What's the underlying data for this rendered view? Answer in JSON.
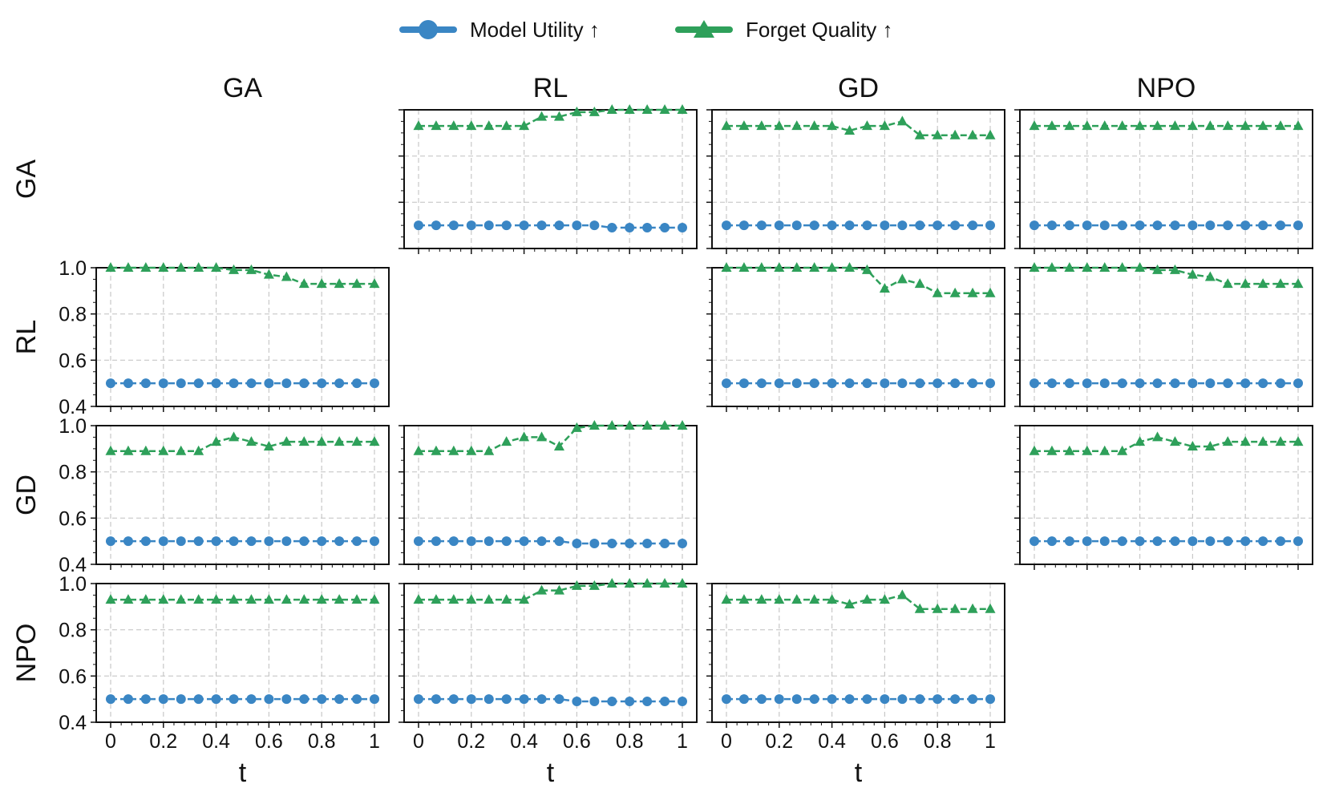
{
  "legend": {
    "model_utility": "Model Utility ↑",
    "forget_quality": "Forget Quality ↑"
  },
  "colors": {
    "model_utility": "#3a86c4",
    "forget_quality": "#2ea05a",
    "grid": "#c8c8c8"
  },
  "col_titles": [
    "GA",
    "RL",
    "GD",
    "NPO"
  ],
  "row_titles": [
    "GA",
    "RL",
    "GD",
    "NPO"
  ],
  "xlabel": "t",
  "x_tick_labels": [
    "0",
    "0.2",
    "0.4",
    "0.6",
    "0.8",
    "1"
  ],
  "y_tick_labels": [
    "0.4",
    "0.6",
    "0.8",
    "1.0"
  ],
  "chart_data": {
    "type": "line",
    "grid": true,
    "legend_position": "top",
    "xlabel": "t",
    "xlim": [
      0,
      1
    ],
    "ylim": [
      0.4,
      1.0
    ],
    "x_ticks": [
      0,
      0.2,
      0.4,
      0.6,
      0.8,
      1
    ],
    "y_ticks": [
      0.4,
      0.6,
      0.8,
      1.0
    ],
    "x": [
      0,
      0.0667,
      0.1333,
      0.2,
      0.2667,
      0.3333,
      0.4,
      0.4667,
      0.5333,
      0.6,
      0.6667,
      0.7333,
      0.8,
      0.8667,
      0.9333,
      1.0
    ],
    "series_names": [
      "Model Utility ↑",
      "Forget Quality ↑"
    ],
    "panels": [
      {
        "row": "GA",
        "col": "RL",
        "model_utility": [
          0.5,
          0.5,
          0.5,
          0.5,
          0.5,
          0.5,
          0.5,
          0.5,
          0.5,
          0.5,
          0.5,
          0.49,
          0.49,
          0.49,
          0.49,
          0.49
        ],
        "forget_quality": [
          0.93,
          0.93,
          0.93,
          0.93,
          0.93,
          0.93,
          0.93,
          0.97,
          0.97,
          0.99,
          0.99,
          1.0,
          1.0,
          1.0,
          1.0,
          1.0
        ]
      },
      {
        "row": "GA",
        "col": "GD",
        "model_utility": [
          0.5,
          0.5,
          0.5,
          0.5,
          0.5,
          0.5,
          0.5,
          0.5,
          0.5,
          0.5,
          0.5,
          0.5,
          0.5,
          0.5,
          0.5,
          0.5
        ],
        "forget_quality": [
          0.93,
          0.93,
          0.93,
          0.93,
          0.93,
          0.93,
          0.93,
          0.91,
          0.93,
          0.93,
          0.95,
          0.89,
          0.89,
          0.89,
          0.89,
          0.89
        ]
      },
      {
        "row": "GA",
        "col": "NPO",
        "model_utility": [
          0.5,
          0.5,
          0.5,
          0.5,
          0.5,
          0.5,
          0.5,
          0.5,
          0.5,
          0.5,
          0.5,
          0.5,
          0.5,
          0.5,
          0.5,
          0.5
        ],
        "forget_quality": [
          0.93,
          0.93,
          0.93,
          0.93,
          0.93,
          0.93,
          0.93,
          0.93,
          0.93,
          0.93,
          0.93,
          0.93,
          0.93,
          0.93,
          0.93,
          0.93
        ]
      },
      {
        "row": "RL",
        "col": "GA",
        "model_utility": [
          0.5,
          0.5,
          0.5,
          0.5,
          0.5,
          0.5,
          0.5,
          0.5,
          0.5,
          0.5,
          0.5,
          0.5,
          0.5,
          0.5,
          0.5,
          0.5
        ],
        "forget_quality": [
          1.0,
          1.0,
          1.0,
          1.0,
          1.0,
          1.0,
          1.0,
          0.99,
          0.99,
          0.97,
          0.96,
          0.93,
          0.93,
          0.93,
          0.93,
          0.93
        ]
      },
      {
        "row": "RL",
        "col": "GD",
        "model_utility": [
          0.5,
          0.5,
          0.5,
          0.5,
          0.5,
          0.5,
          0.5,
          0.5,
          0.5,
          0.5,
          0.5,
          0.5,
          0.5,
          0.5,
          0.5,
          0.5
        ],
        "forget_quality": [
          1.0,
          1.0,
          1.0,
          1.0,
          1.0,
          1.0,
          1.0,
          1.0,
          0.99,
          0.91,
          0.95,
          0.93,
          0.89,
          0.89,
          0.89,
          0.89
        ]
      },
      {
        "row": "RL",
        "col": "NPO",
        "model_utility": [
          0.5,
          0.5,
          0.5,
          0.5,
          0.5,
          0.5,
          0.5,
          0.5,
          0.5,
          0.5,
          0.5,
          0.5,
          0.5,
          0.5,
          0.5,
          0.5
        ],
        "forget_quality": [
          1.0,
          1.0,
          1.0,
          1.0,
          1.0,
          1.0,
          1.0,
          0.99,
          0.99,
          0.97,
          0.96,
          0.93,
          0.93,
          0.93,
          0.93,
          0.93
        ]
      },
      {
        "row": "GD",
        "col": "GA",
        "model_utility": [
          0.5,
          0.5,
          0.5,
          0.5,
          0.5,
          0.5,
          0.5,
          0.5,
          0.5,
          0.5,
          0.5,
          0.5,
          0.5,
          0.5,
          0.5,
          0.5
        ],
        "forget_quality": [
          0.89,
          0.89,
          0.89,
          0.89,
          0.89,
          0.89,
          0.93,
          0.95,
          0.93,
          0.91,
          0.93,
          0.93,
          0.93,
          0.93,
          0.93,
          0.93
        ]
      },
      {
        "row": "GD",
        "col": "RL",
        "model_utility": [
          0.5,
          0.5,
          0.5,
          0.5,
          0.5,
          0.5,
          0.5,
          0.5,
          0.5,
          0.49,
          0.49,
          0.49,
          0.49,
          0.49,
          0.49,
          0.49
        ],
        "forget_quality": [
          0.89,
          0.89,
          0.89,
          0.89,
          0.89,
          0.93,
          0.95,
          0.95,
          0.91,
          0.99,
          1.0,
          1.0,
          1.0,
          1.0,
          1.0,
          1.0
        ]
      },
      {
        "row": "GD",
        "col": "NPO",
        "model_utility": [
          0.5,
          0.5,
          0.5,
          0.5,
          0.5,
          0.5,
          0.5,
          0.5,
          0.5,
          0.5,
          0.5,
          0.5,
          0.5,
          0.5,
          0.5,
          0.5
        ],
        "forget_quality": [
          0.89,
          0.89,
          0.89,
          0.89,
          0.89,
          0.89,
          0.93,
          0.95,
          0.93,
          0.91,
          0.91,
          0.93,
          0.93,
          0.93,
          0.93,
          0.93
        ]
      },
      {
        "row": "NPO",
        "col": "GA",
        "model_utility": [
          0.5,
          0.5,
          0.5,
          0.5,
          0.5,
          0.5,
          0.5,
          0.5,
          0.5,
          0.5,
          0.5,
          0.5,
          0.5,
          0.5,
          0.5,
          0.5
        ],
        "forget_quality": [
          0.93,
          0.93,
          0.93,
          0.93,
          0.93,
          0.93,
          0.93,
          0.93,
          0.93,
          0.93,
          0.93,
          0.93,
          0.93,
          0.93,
          0.93,
          0.93
        ]
      },
      {
        "row": "NPO",
        "col": "RL",
        "model_utility": [
          0.5,
          0.5,
          0.5,
          0.5,
          0.5,
          0.5,
          0.5,
          0.5,
          0.5,
          0.49,
          0.49,
          0.49,
          0.49,
          0.49,
          0.49,
          0.49
        ],
        "forget_quality": [
          0.93,
          0.93,
          0.93,
          0.93,
          0.93,
          0.93,
          0.93,
          0.97,
          0.97,
          0.99,
          0.99,
          1.0,
          1.0,
          1.0,
          1.0,
          1.0
        ]
      },
      {
        "row": "NPO",
        "col": "GD",
        "model_utility": [
          0.5,
          0.5,
          0.5,
          0.5,
          0.5,
          0.5,
          0.5,
          0.5,
          0.5,
          0.5,
          0.5,
          0.5,
          0.5,
          0.5,
          0.5,
          0.5
        ],
        "forget_quality": [
          0.93,
          0.93,
          0.93,
          0.93,
          0.93,
          0.93,
          0.93,
          0.91,
          0.93,
          0.93,
          0.95,
          0.89,
          0.89,
          0.89,
          0.89,
          0.89
        ]
      }
    ]
  }
}
